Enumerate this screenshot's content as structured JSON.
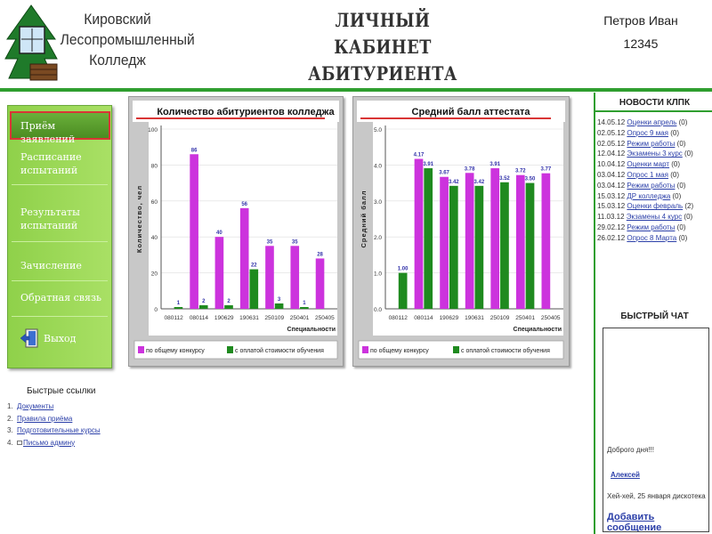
{
  "header": {
    "college_line1": "Кировский",
    "college_line2": "Лесопромышленный",
    "college_line3": "Колледж",
    "title_line1": "ЛИЧНЫЙ КАБИНЕТ",
    "title_line2": "АБИТУРИЕНТА",
    "user_name": "Петров Иван",
    "user_id": "12345"
  },
  "menu": {
    "items": [
      {
        "label": "Приём заявлений",
        "active": true
      },
      {
        "label": "Расписание испытаний"
      },
      {
        "label": "Результаты испытаний"
      },
      {
        "label": "Зачисление"
      },
      {
        "label": "Обратная связь"
      },
      {
        "label": "Выход"
      }
    ]
  },
  "quick_links": {
    "title": "Быстрые ссылки",
    "items": [
      {
        "num": "1.",
        "label": "Документы"
      },
      {
        "num": "2.",
        "label": "Правила приёма"
      },
      {
        "num": "3.",
        "label": "Подготовительные курсы"
      },
      {
        "num": "4.",
        "label": "Письмо админу"
      }
    ]
  },
  "news": {
    "title": "НОВОСТИ КЛПК",
    "items": [
      {
        "date": "14.05.12",
        "label": "Оценки апрель",
        "count": "(0)"
      },
      {
        "date": "02.05.12",
        "label": "Опрос 9 мая",
        "count": "(0)"
      },
      {
        "date": "02.05.12",
        "label": "Режим работы",
        "count": "(0)"
      },
      {
        "date": "12.04.12",
        "label": "Экзамены 3 курс",
        "count": "(0)"
      },
      {
        "date": "10.04.12",
        "label": "Оценки март",
        "count": "(0)"
      },
      {
        "date": "03.04.12",
        "label": "Опрос 1 мая",
        "count": "(0)"
      },
      {
        "date": "03.04.12",
        "label": "Режим работы",
        "count": "(0)"
      },
      {
        "date": "15.03.12",
        "label": "ДР колледжа",
        "count": "(0)"
      },
      {
        "date": "15.03.12",
        "label": "Оценки февраль",
        "count": "(2)"
      },
      {
        "date": "11.03.12",
        "label": "Экзамены 4 курс",
        "count": "(0)"
      },
      {
        "date": "29.02.12",
        "label": "Режим работы",
        "count": "(0)"
      },
      {
        "date": "26.02.12",
        "label": "Опрос 8 Марта",
        "count": "(0)"
      }
    ]
  },
  "chat": {
    "title": "БЫСТРЫЙ ЧАТ",
    "message1": "Доброго дня!!!",
    "author": "Алексей",
    "message2": "Хей-хей, 25 января дискотека",
    "add_label": "Добавить сообщение"
  },
  "colors": {
    "series1": "#cc33dd",
    "series2": "#1f8a1f",
    "accent_green": "#2f9e2f",
    "title_underline": "#d93535",
    "link": "#2b3fa8"
  },
  "chart_data": [
    {
      "type": "bar",
      "title": "Количество абитуриентов колледжа",
      "xlabel": "Специальности",
      "ylabel": "Количество, чел",
      "ylim": [
        0,
        100
      ],
      "yticks": [
        0,
        20,
        40,
        60,
        80,
        100
      ],
      "categories": [
        "080112",
        "080114",
        "190629",
        "190631",
        "250109",
        "250401",
        "250405"
      ],
      "series": [
        {
          "name": "по общему конкурсу",
          "values": [
            null,
            86,
            40,
            56,
            35,
            35,
            28
          ],
          "labels": [
            "",
            "86",
            "40",
            "56",
            "35",
            "35",
            "28"
          ]
        },
        {
          "name": "с оплатой стоимости обучения",
          "values": [
            1,
            2,
            2,
            22,
            3,
            1,
            null
          ],
          "labels": [
            "1",
            "2",
            "2",
            "22",
            "3",
            "1",
            ""
          ]
        }
      ]
    },
    {
      "type": "bar",
      "title": "Средний балл аттестата",
      "xlabel": "Специальности",
      "ylabel": "Средний балл",
      "ylim": [
        0,
        5
      ],
      "yticks": [
        "0.0",
        "1.0",
        "2.0",
        "3.0",
        "4.0",
        "5.0"
      ],
      "categories": [
        "080112",
        "080114",
        "190629",
        "190631",
        "250109",
        "250401",
        "250405"
      ],
      "series": [
        {
          "name": "по общему конкурсу",
          "values": [
            null,
            4.17,
            3.67,
            3.78,
            3.91,
            3.72,
            3.77
          ],
          "labels": [
            "",
            "4.17",
            "3.67",
            "3.78",
            "3.91",
            "3.72",
            "3.77"
          ]
        },
        {
          "name": "с оплатой стоимости обучения",
          "values": [
            1.0,
            3.91,
            3.42,
            3.42,
            3.52,
            3.5,
            null
          ],
          "labels": [
            "1.00",
            "3.91",
            "3.42",
            "3.42",
            "3.52",
            "3.50",
            ""
          ]
        }
      ]
    }
  ]
}
